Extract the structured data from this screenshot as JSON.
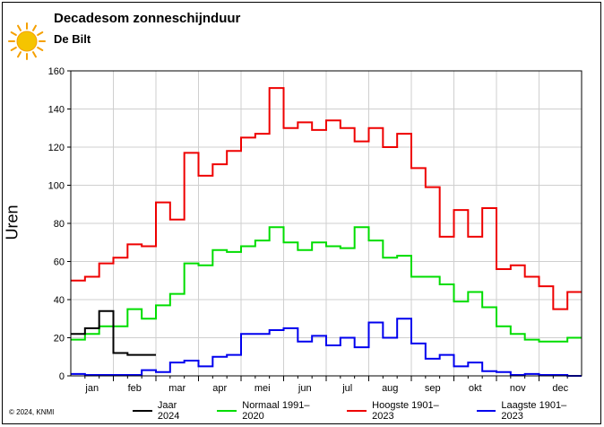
{
  "title": "Decadesom zonneschijnduur",
  "subtitle": "De Bilt",
  "copyright": "© 2024, KNMI",
  "colors": {
    "jaar": "#000000",
    "normaal": "#00dd00",
    "hoogste": "#ee0000",
    "laagste": "#0000ee",
    "sun": "#f5c400",
    "sun_rays": "#f5a000"
  },
  "legend": [
    {
      "label": "Jaar 2024",
      "color": "#000000"
    },
    {
      "label": "Normaal 1991–2020",
      "color": "#00dd00"
    },
    {
      "label": "Hoogste 1901–2023",
      "color": "#ee0000"
    },
    {
      "label": "Laagste 1901–2023",
      "color": "#0000ee"
    }
  ],
  "chart_data": {
    "type": "line",
    "step": true,
    "title": "Decadesom zonneschijnduur",
    "subtitle": "De Bilt",
    "ylabel": "Uren",
    "xlabel": "",
    "ylim": [
      0,
      160
    ],
    "yticks": [
      0,
      20,
      40,
      60,
      80,
      100,
      120,
      140,
      160
    ],
    "months": [
      "jan",
      "feb",
      "mar",
      "apr",
      "mei",
      "jun",
      "jul",
      "aug",
      "sep",
      "okt",
      "nov",
      "dec"
    ],
    "decades_per_month": 3,
    "grid": true,
    "legend_position": "bottom",
    "series": [
      {
        "name": "Jaar 2024",
        "color": "#000000",
        "values": [
          22,
          25,
          34,
          12,
          11,
          11
        ]
      },
      {
        "name": "Normaal 1991–2020",
        "color": "#00dd00",
        "values": [
          19,
          22,
          26,
          26,
          35,
          30,
          37,
          43,
          59,
          58,
          66,
          65,
          68,
          71,
          78,
          70,
          66,
          70,
          68,
          67,
          78,
          71,
          62,
          63,
          52,
          52,
          48,
          39,
          44,
          36,
          26,
          22,
          19,
          18,
          18,
          20
        ]
      },
      {
        "name": "Hoogste 1901–2023",
        "color": "#ee0000",
        "values": [
          50,
          52,
          59,
          62,
          69,
          68,
          91,
          82,
          117,
          105,
          111,
          118,
          125,
          127,
          151,
          130,
          133,
          129,
          134,
          130,
          123,
          130,
          120,
          127,
          109,
          99,
          73,
          87,
          73,
          88,
          56,
          58,
          52,
          47,
          35,
          44
        ]
      },
      {
        "name": "Laagste 1901–2023",
        "color": "#0000ee",
        "values": [
          1,
          0.5,
          0.5,
          0.5,
          0.5,
          3,
          2,
          7,
          8,
          5,
          10,
          11,
          22,
          22,
          24,
          25,
          18,
          21,
          16,
          20,
          15,
          28,
          20,
          30,
          17,
          9,
          11,
          5,
          7,
          2.5,
          2,
          0.5,
          1,
          0.5,
          0.5,
          0
        ]
      }
    ]
  }
}
